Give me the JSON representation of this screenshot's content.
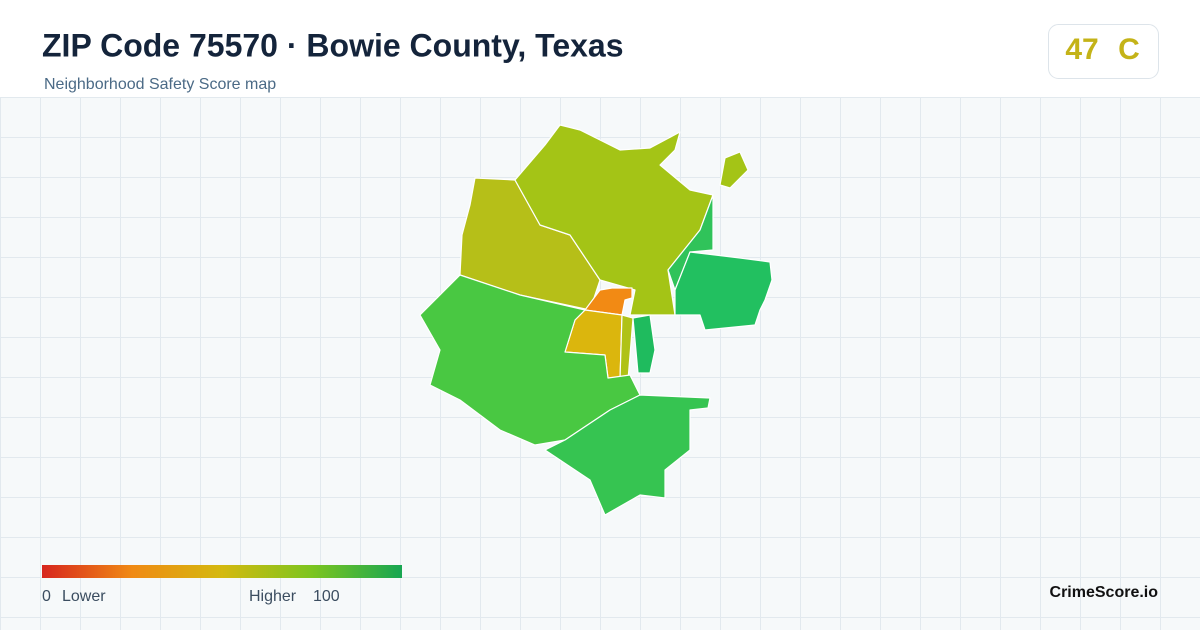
{
  "header": {
    "title": "ZIP Code 75570 · Bowie County, Texas",
    "subtitle": "Neighborhood Safety Score map"
  },
  "badge": {
    "score": "47",
    "grade": "C"
  },
  "legend": {
    "min": "0",
    "min_label": "Lower",
    "max_label": "Higher",
    "max": "100"
  },
  "brand": "CrimeScore.io"
}
